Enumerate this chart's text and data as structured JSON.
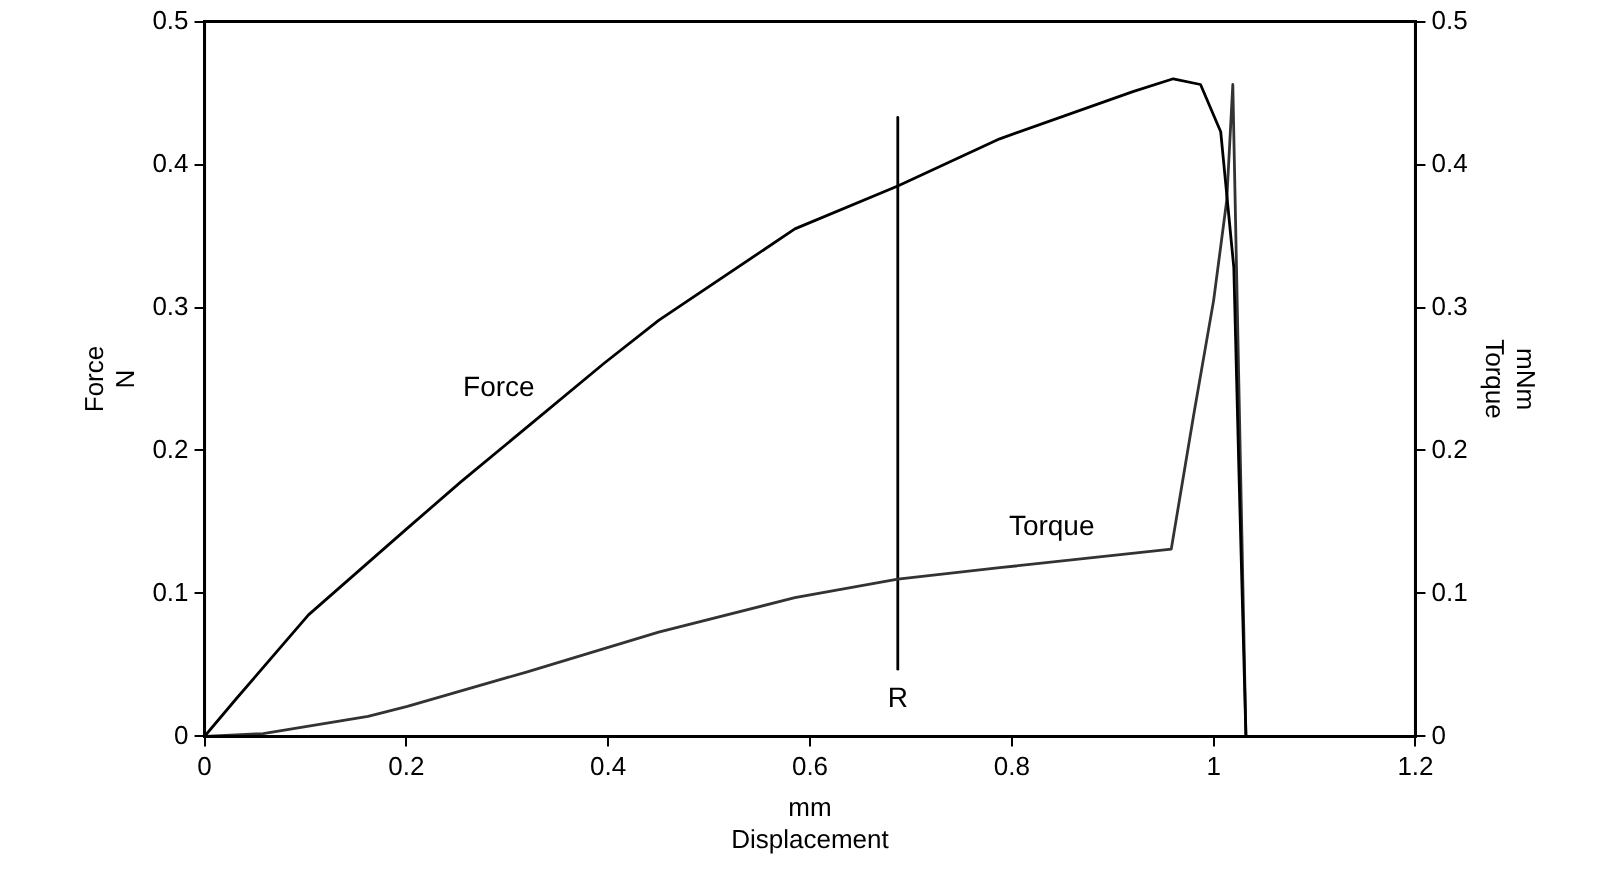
{
  "chart_data": {
    "type": "line",
    "xlabel": "mm\nDisplacement",
    "ylabel": "Force\nN",
    "y2label": "mNm\nTorque",
    "series": [
      {
        "name": "Force",
        "color": "#000000",
        "x": [
          0,
          0.031,
          0.103,
          0.2,
          0.254,
          0.319,
          0.396,
          0.45,
          0.585,
          0.687,
          0.788,
          0.92,
          0.96,
          0.987,
          1.007,
          1.02,
          1.025,
          1.032
        ],
        "values": [
          0,
          0.026,
          0.085,
          0.145,
          0.178,
          0.216,
          0.261,
          0.291,
          0.355,
          0.385,
          0.418,
          0.451,
          0.46,
          0.456,
          0.423,
          0.328,
          0.187,
          0
        ]
      },
      {
        "name": "Torque",
        "color": "#333333",
        "axis": "y2",
        "x": [
          0,
          0.058,
          0.162,
          0.201,
          0.319,
          0.45,
          0.585,
          0.687,
          0.788,
          0.958,
          0.98,
          1.0,
          1.013,
          1.019,
          1.032
        ],
        "values": [
          0,
          0.002,
          0.014,
          0.021,
          0.045,
          0.073,
          0.097,
          0.11,
          0.118,
          0.131,
          0.224,
          0.305,
          0.375,
          0.456,
          0
        ]
      },
      {
        "name": "R",
        "color": "#000000",
        "x": [
          0.687,
          0.687
        ],
        "values": [
          0.047,
          0.433
        ]
      }
    ],
    "xlim": [
      0,
      1.2
    ],
    "xticks": [
      0,
      0.2,
      0.4,
      0.6,
      0.8,
      1,
      1.2
    ],
    "ylim": [
      0,
      0.5
    ],
    "yticks": [
      0,
      0.1,
      0.2,
      0.3,
      0.4,
      0.5
    ],
    "y2lim": [
      0,
      0.5
    ],
    "y2ticks": [
      0,
      0.1,
      0.2,
      0.3,
      0.4,
      0.5
    ],
    "grid": false,
    "legend": false,
    "marker": "none",
    "line_style": "solid"
  }
}
